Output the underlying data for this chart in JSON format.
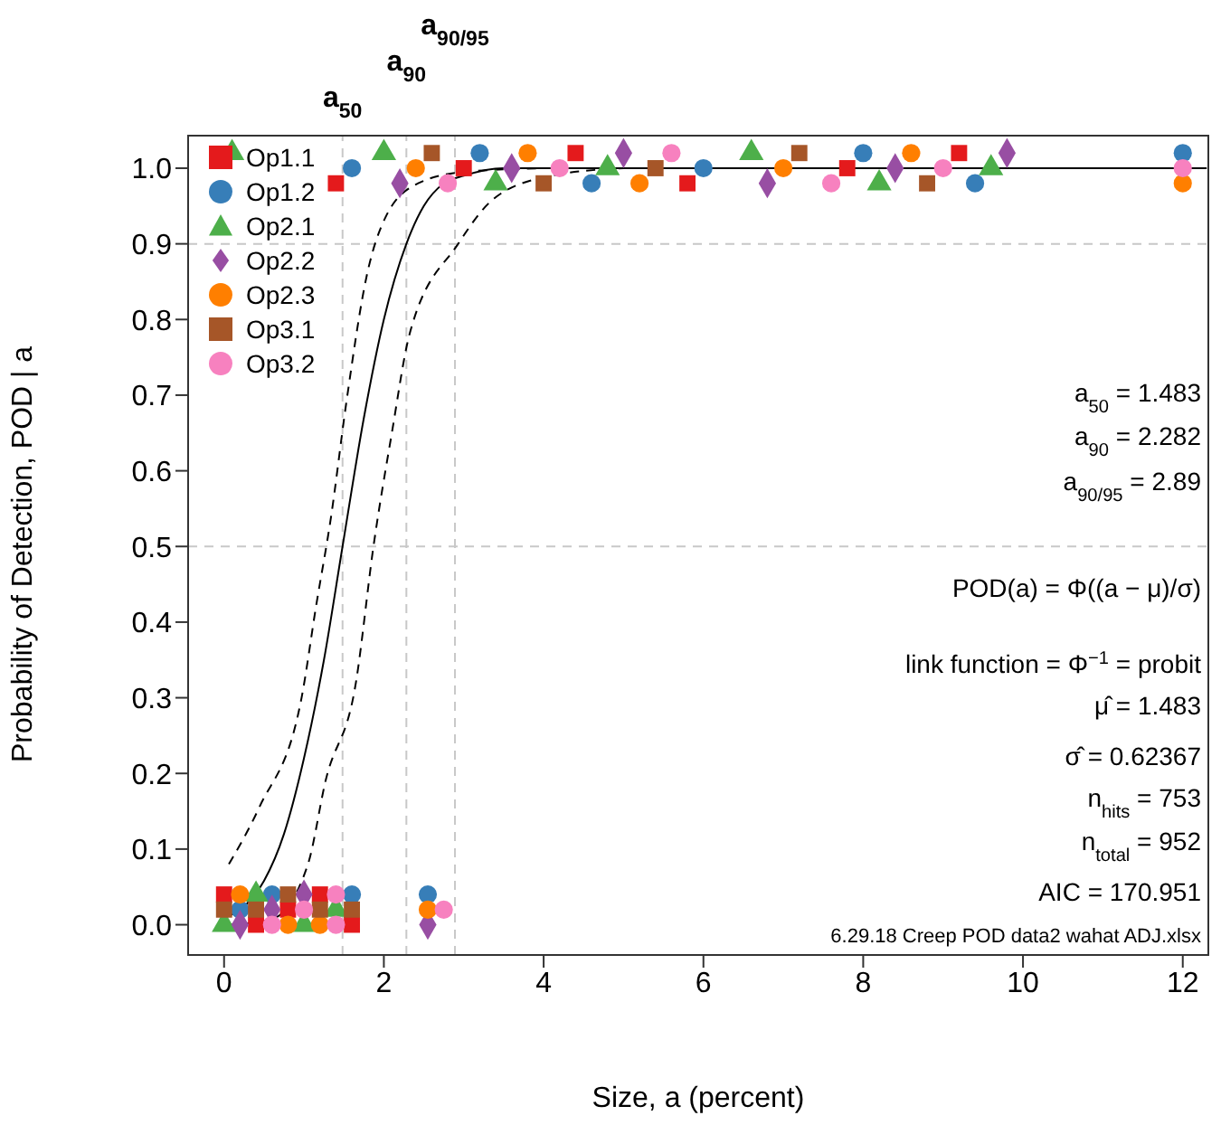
{
  "chart_data": {
    "type": "scatter",
    "xlabel": "Size, a  (percent)",
    "ylabel": "Probability of Detection, POD | a",
    "xlim": [
      -0.45,
      12.32
    ],
    "ylim": [
      -0.04,
      1.043
    ],
    "xticks": [
      0,
      2,
      4,
      6,
      8,
      10,
      12
    ],
    "yticks": [
      {
        "value": 0,
        "label": "0.0"
      },
      {
        "value": 0.1,
        "label": "0.1"
      },
      {
        "value": 0.2,
        "label": "0.2"
      },
      {
        "value": 0.3,
        "label": "0.3"
      },
      {
        "value": 0.4,
        "label": "0.4"
      },
      {
        "value": 0.5,
        "label": "0.5"
      },
      {
        "value": 0.6,
        "label": "0.6"
      },
      {
        "value": 0.7,
        "label": "0.7"
      },
      {
        "value": 0.8,
        "label": "0.8"
      },
      {
        "value": 0.9,
        "label": "0.9"
      },
      {
        "value": 1,
        "label": "1.0"
      }
    ],
    "grid": false,
    "legend": "top left",
    "ref_lines": [
      {
        "axis": "x",
        "value": 1.483,
        "color": "#c8c8c8",
        "line_style": "dashed"
      },
      {
        "axis": "x",
        "value": 2.282,
        "color": "#c8c8c8",
        "line_style": "dashed"
      },
      {
        "axis": "x",
        "value": 2.89,
        "color": "#c8c8c8",
        "line_style": "dashed"
      },
      {
        "axis": "y",
        "value": 0.5,
        "color": "#c8c8c8",
        "line_style": "dashed"
      },
      {
        "axis": "y",
        "value": 0.9,
        "color": "#c8c8c8",
        "line_style": "dashed"
      }
    ],
    "annotations": [
      "a$_{50}$",
      "a$_{90}$",
      "a$_{90/95}$",
      "a$_{50}$ = 1.483",
      "a$_{90}$ = 2.282",
      "a$_{90/95}$ = 2.89",
      "POD(a) = Φ((a − μ)/σ)",
      "link function =  Φ$^{−1}$ = probit",
      "μ̂ = 1.483",
      "σ̂ = 0.62367",
      "n$_{hits}$ = 753",
      "n$_{total}$ = 952",
      "AIC = 170.951",
      "6.29.18 Creep POD data2 wahat ADJ.xlsx"
    ],
    "series": [
      {
        "name": "Op1.1",
        "color": "#e41a1c",
        "marker": "square",
        "x": [
          0,
          0.4,
          0.8,
          1.2,
          1.6,
          1.4,
          3.0,
          4.4,
          5.8,
          7.8,
          9.2
        ],
        "values": [
          0.04,
          0.0,
          0.02,
          0.04,
          0.0,
          0.98,
          1.0,
          1.02,
          0.98,
          1.0,
          1.02
        ]
      },
      {
        "name": "Op1.2",
        "color": "#377eb8",
        "marker": "circle",
        "x": [
          0.2,
          0.6,
          1.6,
          2.55,
          1.6,
          3.2,
          4.6,
          6.0,
          8.0,
          9.4,
          12
        ],
        "values": [
          0.02,
          0.04,
          0.04,
          0.04,
          1.0,
          1.02,
          0.98,
          1.0,
          1.02,
          0.98,
          1.02
        ]
      },
      {
        "name": "Op2.1",
        "color": "#4daf4a",
        "marker": "triangle",
        "x": [
          0,
          0.4,
          1.0,
          1.4,
          0.1,
          2.0,
          3.4,
          4.8,
          6.6,
          8.2,
          9.6
        ],
        "values": [
          0.0,
          0.04,
          0.0,
          0.02,
          1.02,
          1.02,
          0.98,
          1.0,
          1.02,
          0.98,
          1.0
        ]
      },
      {
        "name": "Op2.2",
        "color": "#984ea3",
        "marker": "diamond",
        "x": [
          0.2,
          0.6,
          1.0,
          2.55,
          2.2,
          3.6,
          5.0,
          6.8,
          8.4,
          9.8
        ],
        "values": [
          0.0,
          0.02,
          0.04,
          0.0,
          0.98,
          1.0,
          1.02,
          0.98,
          1.0,
          1.02
        ]
      },
      {
        "name": "Op2.3",
        "color": "#ff7f00",
        "marker": "circle",
        "x": [
          0.2,
          0.8,
          1.2,
          2.55,
          2.4,
          3.8,
          5.2,
          7.0,
          8.6,
          12
        ],
        "values": [
          0.04,
          0.0,
          0.0,
          0.02,
          1.0,
          1.02,
          0.98,
          1.0,
          1.02,
          0.98
        ]
      },
      {
        "name": "Op3.1",
        "color": "#a65628",
        "marker": "square",
        "x": [
          0,
          0.4,
          0.8,
          1.2,
          1.6,
          2.6,
          4.0,
          5.4,
          7.2,
          8.8
        ],
        "values": [
          0.02,
          0.02,
          0.04,
          0.02,
          0.02,
          1.02,
          0.98,
          1.0,
          1.02,
          0.98
        ]
      },
      {
        "name": "Op3.2",
        "color": "#f781bf",
        "marker": "circle",
        "x": [
          0.6,
          1.0,
          1.4,
          1.4,
          2.75,
          2.8,
          4.2,
          5.6,
          7.6,
          9.0,
          12
        ],
        "values": [
          0.0,
          0.02,
          0.0,
          0.04,
          0.02,
          0.98,
          1.0,
          1.02,
          0.98,
          1.0,
          1.0
        ]
      },
      {
        "type": "line",
        "color": "#000000",
        "line_style": "solid",
        "marker": "none",
        "x": [
          0,
          0.25,
          0.5,
          0.75,
          1.0,
          1.25,
          1.483,
          1.75,
          2.0,
          2.282,
          2.5,
          2.75,
          3.0,
          3.5,
          4.0,
          12.3
        ],
        "values": [
          0.009,
          0.024,
          0.058,
          0.12,
          0.22,
          0.35,
          0.5,
          0.67,
          0.8,
          0.9,
          0.95,
          0.98,
          0.99,
          1.0,
          1.0,
          1.0
        ]
      },
      {
        "type": "line",
        "color": "#000000",
        "line_style": "dashed",
        "marker": "none",
        "x": [
          0.06,
          0.44,
          0.97,
          1.15,
          1.34,
          1.53,
          1.79,
          2.02,
          2.43,
          3.0,
          4.0
        ],
        "values": [
          0.08,
          0.155,
          0.3,
          0.42,
          0.54,
          0.69,
          0.86,
          0.935,
          0.98,
          0.995,
          1.0
        ]
      },
      {
        "type": "line",
        "color": "#000000",
        "line_style": "dashed",
        "marker": "none",
        "x": [
          0.06,
          0.59,
          1.05,
          1.27,
          1.65,
          1.87,
          2.1,
          2.32,
          2.93,
          3.38,
          4.1,
          5.0
        ],
        "values": [
          0.0,
          0.007,
          0.08,
          0.19,
          0.32,
          0.5,
          0.65,
          0.78,
          0.9,
          0.96,
          0.99,
          1.0
        ]
      }
    ]
  }
}
